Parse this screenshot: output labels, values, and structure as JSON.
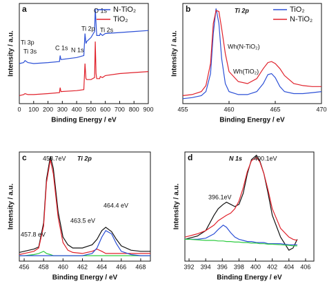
{
  "chart_data": [
    {
      "type": "line",
      "panel": "a",
      "xlabel": "Binding Energy / eV",
      "ylabel": "Intensity / a.u.",
      "xlim": [
        0,
        900
      ],
      "xticks": [
        0,
        100,
        200,
        300,
        400,
        500,
        600,
        700,
        800,
        900
      ],
      "ylim": [
        0,
        100
      ],
      "annotations": [
        "Ti 3p",
        "Ti 3s",
        "C 1s",
        "N 1s",
        "Ti 2p",
        "O 1s",
        "Ti 2s"
      ],
      "x": [
        0,
        30,
        40,
        60,
        100,
        200,
        280,
        285,
        290,
        400,
        450,
        458,
        465,
        470,
        500,
        525,
        530,
        535,
        540,
        560,
        565,
        580,
        600,
        700,
        800,
        900
      ],
      "series": [
        {
          "name": "N-TiO₂",
          "color": "#2b4fd6",
          "values": [
            40,
            41,
            43,
            41,
            40,
            41,
            42,
            48,
            44,
            46,
            48,
            70,
            60,
            62,
            66,
            72,
            95,
            80,
            68,
            68,
            70,
            68,
            70,
            71,
            72,
            73
          ]
        },
        {
          "name": "TiO₂",
          "color": "#e0202a",
          "values": [
            8,
            9,
            10,
            9,
            9,
            10,
            11,
            16,
            12,
            13,
            14,
            40,
            25,
            24,
            24,
            26,
            62,
            30,
            25,
            25,
            27,
            26,
            28,
            30,
            31,
            32
          ]
        }
      ]
    },
    {
      "type": "line",
      "panel": "b",
      "xlabel": "Binding Energy / eV",
      "ylabel": "Intensity / a.u.",
      "xlim": [
        455,
        470
      ],
      "xticks": [
        455,
        460,
        465,
        470
      ],
      "ylim": [
        0,
        100
      ],
      "annotations": [
        "Ti 2p",
        "Wh(N-TiO₂)",
        "Wh(TiO₂)"
      ],
      "x": [
        455,
        456,
        457,
        457.5,
        458,
        458.3,
        458.6,
        458.9,
        459.2,
        459.6,
        460,
        461,
        462,
        463,
        463.7,
        464.2,
        464.6,
        465,
        465.5,
        466,
        467,
        468,
        469,
        470
      ],
      "series": [
        {
          "name": "TiO₂",
          "color": "#2b4fd6",
          "values": [
            5,
            6,
            8,
            12,
            30,
            70,
            95,
            80,
            45,
            20,
            12,
            9,
            9,
            12,
            20,
            29,
            30,
            26,
            17,
            12,
            10,
            10,
            11,
            12
          ]
        },
        {
          "name": "N-TiO₂",
          "color": "#e0202a",
          "values": [
            8,
            9,
            12,
            18,
            40,
            80,
            93,
            92,
            75,
            50,
            32,
            22,
            20,
            25,
            35,
            41,
            42,
            40,
            35,
            28,
            20,
            18,
            17,
            17
          ]
        }
      ]
    },
    {
      "type": "line",
      "panel": "c",
      "xlabel": "Binding Energy / eV",
      "ylabel": "Intensity / a.u.",
      "xlim": [
        455.5,
        469
      ],
      "xticks": [
        456,
        458,
        460,
        462,
        464,
        466,
        468
      ],
      "ylim": [
        0,
        100
      ],
      "annotations": [
        "458.7eV",
        "Ti 2p",
        "464.4 eV",
        "463.5 eV",
        "457.8 eV"
      ],
      "x": [
        455.5,
        456,
        457,
        457.5,
        458,
        458.3,
        458.7,
        459,
        459.5,
        460,
        460.5,
        461,
        462,
        463,
        463.5,
        464,
        464.4,
        465,
        465.5,
        466,
        467,
        468,
        469
      ],
      "series": [
        {
          "color": "#111111",
          "values": [
            8,
            9,
            11,
            13,
            35,
            75,
            96,
            85,
            45,
            22,
            15,
            12,
            12,
            15,
            20,
            28,
            31,
            27,
            20,
            14,
            10,
            9,
            9
          ]
        },
        {
          "color": "#e0202a",
          "values": [
            6,
            7,
            9,
            12,
            32,
            72,
            93,
            80,
            40,
            17,
            10,
            8,
            7,
            9,
            11,
            9,
            7,
            7,
            7,
            7,
            7,
            7,
            7
          ]
        },
        {
          "color": "#2ecc40",
          "values": [
            5,
            5,
            6,
            7,
            9,
            7,
            6,
            5,
            5,
            5,
            5,
            5,
            5,
            5,
            5,
            5,
            5,
            5,
            5,
            5,
            5,
            5,
            5
          ]
        },
        {
          "color": "#2b4fd6",
          "values": [
            5,
            5,
            5,
            5,
            5,
            5,
            5,
            5,
            5,
            5,
            5,
            5,
            5,
            7,
            12,
            22,
            28,
            25,
            16,
            9,
            6,
            5,
            5
          ]
        }
      ]
    },
    {
      "type": "line",
      "panel": "d",
      "xlabel": "Binding Energy / eV",
      "ylabel": "Intensity / a.u.",
      "xlim": [
        391.5,
        407
      ],
      "xticks": [
        392,
        394,
        396,
        398,
        400,
        402,
        404,
        406
      ],
      "ylim": [
        0,
        100
      ],
      "annotations": [
        "N 1s",
        "400.1eV",
        "396.1eV"
      ],
      "x": [
        391.5,
        392,
        393,
        394,
        395,
        395.5,
        396.1,
        396.5,
        397,
        397.5,
        398,
        398.5,
        399,
        399.5,
        400.1,
        400.5,
        401,
        401.5,
        402,
        403,
        404,
        404.5,
        405
      ],
      "series": [
        {
          "color": "#111111",
          "values": [
            20,
            21,
            23,
            28,
            42,
            48,
            52,
            54,
            52,
            50,
            52,
            62,
            80,
            93,
            97,
            92,
            80,
            62,
            42,
            22,
            10,
            12,
            20
          ]
        },
        {
          "color": "#e0202a",
          "values": [
            22,
            23,
            25,
            28,
            33,
            37,
            40,
            42,
            44,
            48,
            55,
            67,
            82,
            92,
            95,
            91,
            80,
            65,
            48,
            30,
            22,
            20,
            19
          ]
        },
        {
          "color": "#2b4fd6",
          "values": [
            20,
            20,
            20,
            21,
            25,
            29,
            33,
            31,
            26,
            22,
            20,
            19,
            18,
            18,
            17,
            17,
            17,
            16,
            16,
            16,
            15,
            15,
            15
          ]
        },
        {
          "color": "#2ecc40",
          "values": [
            20,
            20,
            19.5,
            19,
            19,
            18.5,
            18.5,
            18,
            18,
            17.5,
            17.5,
            17,
            17,
            16.5,
            16.5,
            16,
            16,
            15.5,
            15.5,
            15,
            14.5,
            14,
            14
          ]
        }
      ]
    }
  ]
}
